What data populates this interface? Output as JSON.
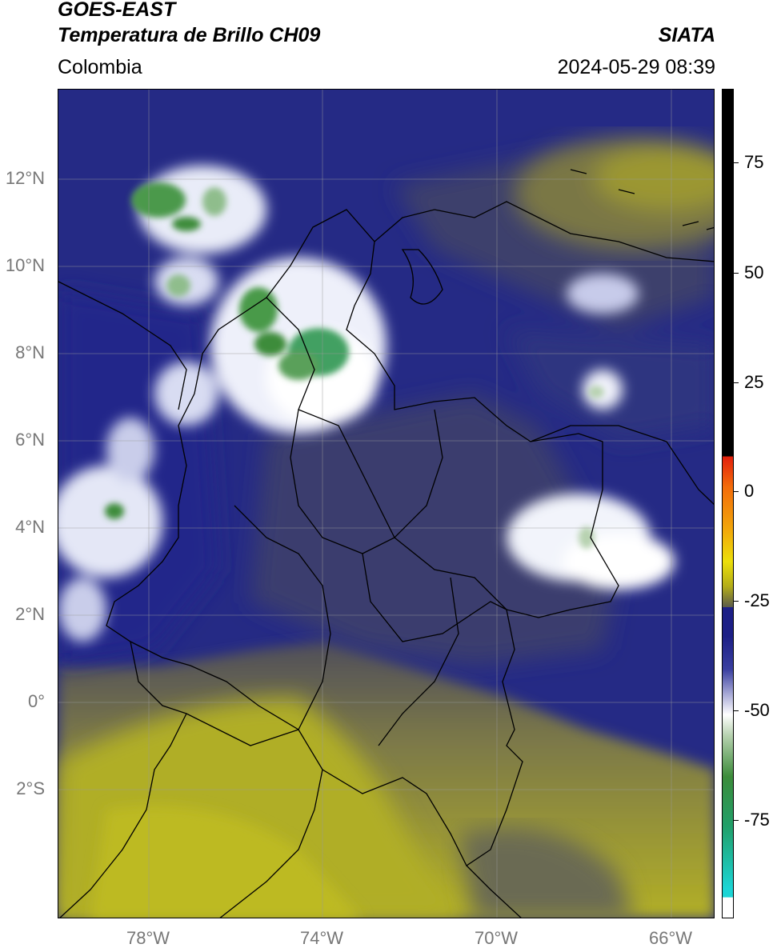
{
  "header": {
    "title_line1": "GOES-EAST",
    "title_line2": "Temperatura de Brillo CH09",
    "brand": "SIATA",
    "region": "Colombia",
    "timestamp": "2024-05-29 08:39"
  },
  "axes": {
    "lat_ticks": [
      "12°N",
      "10°N",
      "8°N",
      "6°N",
      "4°N",
      "2°N",
      "0°",
      "2°S"
    ],
    "lon_ticks": [
      "78°W",
      "74°W",
      "70°W",
      "66°W"
    ]
  },
  "colorbar": {
    "ticks": [
      "75",
      "50",
      "25",
      "0",
      "-25",
      "-50",
      "-75"
    ],
    "colors": {
      "top": "#000000",
      "warm": [
        "#e21f0c",
        "#f36c0a",
        "#f2a50a",
        "#ecdf0a",
        "#b3ad19",
        "#5b5b4b"
      ],
      "mid": [
        "#1c1f86",
        "#3a3fa0",
        "#a7a9d6",
        "#ffffff",
        "#b7d2b0"
      ],
      "cold": [
        "#3c8c3a",
        "#21a06a",
        "#1cd5d5",
        "#ffffff"
      ]
    }
  },
  "map": {
    "colors": {
      "ocean_cloud_low": "#2a2f86",
      "dry_olive": "#8e8a3a",
      "dry_yellow": "#b5b324",
      "cloud_white": "#f2f4fb",
      "cloud_green": "#4a9a4a",
      "border": "#000000",
      "grid": "#9a9a9a"
    }
  }
}
